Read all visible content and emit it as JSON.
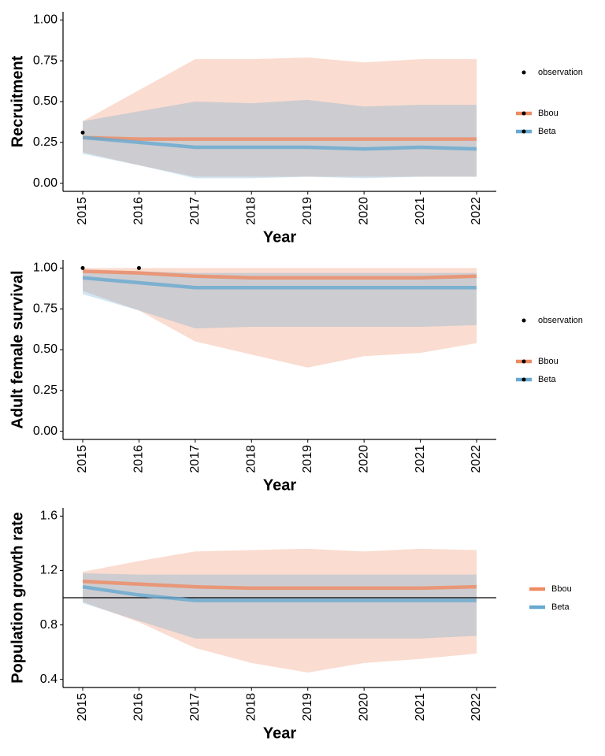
{
  "chart_data": [
    {
      "type": "line",
      "y_label": "Recruitment",
      "x_label": "Year",
      "x": [
        2015,
        2016,
        2017,
        2018,
        2019,
        2020,
        2021,
        2022
      ],
      "xlim": [
        2014.65,
        2022.35
      ],
      "xticks": [
        2015,
        2016,
        2017,
        2018,
        2019,
        2020,
        2021,
        2022
      ],
      "ylim": [
        -0.05,
        1.05
      ],
      "yticks": [
        {
          "value": 0,
          "label": "0.00"
        },
        0.25,
        {
          "value": 0.5,
          "label": "0.50"
        },
        0.75,
        {
          "value": 1,
          "label": "1.00"
        }
      ],
      "series": [
        {
          "name": "Bbou",
          "color": "#ef8a62",
          "values": [
            0.28,
            0.27,
            0.27,
            0.27,
            0.27,
            0.27,
            0.27,
            0.27
          ],
          "lower": [
            0.19,
            0.11,
            0.04,
            0.04,
            0.04,
            0.04,
            0.04,
            0.04
          ],
          "upper": [
            0.38,
            0.57,
            0.76,
            0.76,
            0.77,
            0.74,
            0.76,
            0.76
          ]
        },
        {
          "name": "Beta",
          "color": "#67a9cf",
          "values": [
            0.28,
            0.25,
            0.22,
            0.22,
            0.22,
            0.21,
            0.22,
            0.21
          ],
          "lower": [
            0.18,
            0.11,
            0.03,
            0.03,
            0.04,
            0.03,
            0.04,
            0.04
          ],
          "upper": [
            0.38,
            0.44,
            0.5,
            0.49,
            0.51,
            0.47,
            0.48,
            0.48
          ]
        }
      ],
      "observations": {
        "name": "observation",
        "color": "#000000",
        "x": [
          2015
        ],
        "values": [
          0.31
        ]
      }
    },
    {
      "type": "line",
      "y_label": "Adult female survival",
      "x_label": "Year",
      "x": [
        2015,
        2016,
        2017,
        2018,
        2019,
        2020,
        2021,
        2022
      ],
      "xlim": [
        2014.65,
        2022.35
      ],
      "xticks": [
        2015,
        2016,
        2017,
        2018,
        2019,
        2020,
        2021,
        2022
      ],
      "ylim": [
        -0.05,
        1.05
      ],
      "yticks": [
        {
          "value": 0,
          "label": "0.00"
        },
        0.25,
        {
          "value": 0.5,
          "label": "0.50"
        },
        0.75,
        {
          "value": 1,
          "label": "1.00"
        }
      ],
      "series": [
        {
          "name": "Bbou",
          "color": "#ef8a62",
          "values": [
            0.98,
            0.97,
            0.95,
            0.94,
            0.94,
            0.94,
            0.94,
            0.95
          ],
          "lower": [
            0.86,
            0.74,
            0.55,
            0.47,
            0.39,
            0.46,
            0.48,
            0.54
          ],
          "upper": [
            1.0,
            1.0,
            1.0,
            1.0,
            1.0,
            1.0,
            1.0,
            1.0
          ]
        },
        {
          "name": "Beta",
          "color": "#67a9cf",
          "values": [
            0.94,
            0.91,
            0.88,
            0.88,
            0.88,
            0.88,
            0.88,
            0.88
          ],
          "lower": [
            0.84,
            0.74,
            0.63,
            0.64,
            0.64,
            0.64,
            0.64,
            0.65
          ],
          "upper": [
            0.99,
            0.98,
            0.97,
            0.97,
            0.97,
            0.97,
            0.97,
            0.97
          ]
        }
      ],
      "observations": {
        "name": "observation",
        "color": "#000000",
        "x": [
          2015,
          2016
        ],
        "values": [
          1.0,
          1.0
        ]
      }
    },
    {
      "type": "line",
      "y_label": "Population growth rate",
      "x_label": "Year",
      "x": [
        2015,
        2016,
        2017,
        2018,
        2019,
        2020,
        2021,
        2022
      ],
      "xlim": [
        2014.65,
        2022.35
      ],
      "xticks": [
        2015,
        2016,
        2017,
        2018,
        2019,
        2020,
        2021,
        2022
      ],
      "ylim": [
        0.34,
        1.66
      ],
      "yticks": [
        0.4,
        0.8,
        1.2,
        1.6
      ],
      "hline": 1,
      "series": [
        {
          "name": "Bbou",
          "color": "#ef8a62",
          "values": [
            1.12,
            1.1,
            1.08,
            1.07,
            1.07,
            1.07,
            1.07,
            1.08
          ],
          "lower": [
            0.97,
            0.82,
            0.63,
            0.52,
            0.45,
            0.52,
            0.55,
            0.59
          ],
          "upper": [
            1.19,
            1.27,
            1.34,
            1.35,
            1.36,
            1.34,
            1.36,
            1.35
          ]
        },
        {
          "name": "Beta",
          "color": "#67a9cf",
          "values": [
            1.08,
            1.02,
            0.98,
            0.98,
            0.98,
            0.98,
            0.98,
            0.98
          ],
          "lower": [
            0.96,
            0.83,
            0.7,
            0.7,
            0.7,
            0.7,
            0.7,
            0.72
          ],
          "upper": [
            1.18,
            1.17,
            1.17,
            1.17,
            1.17,
            1.17,
            1.17,
            1.17
          ]
        }
      ]
    }
  ]
}
